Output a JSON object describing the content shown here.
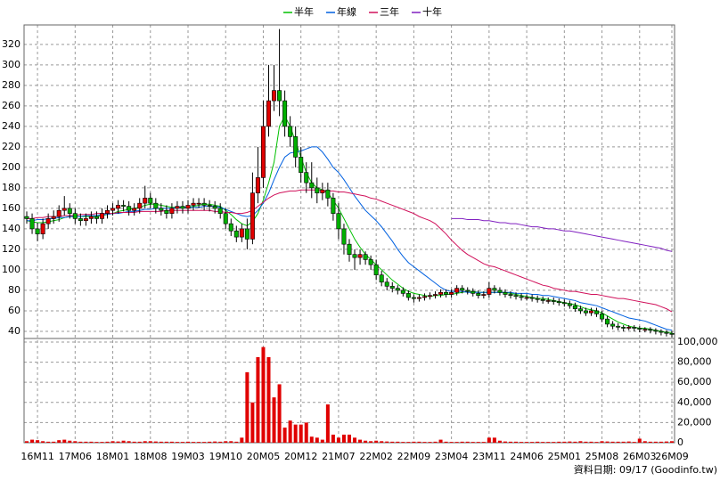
{
  "chart_data": {
    "type": "candlestick",
    "categories": [
      null,
      null,
      "16M11",
      null,
      null,
      null,
      null,
      null,
      null,
      "17M06",
      null,
      null,
      null,
      null,
      null,
      null,
      "18M01",
      null,
      null,
      null,
      null,
      null,
      null,
      "18M08",
      null,
      null,
      null,
      null,
      null,
      null,
      "19M03",
      null,
      null,
      null,
      null,
      null,
      null,
      "19M10",
      null,
      null,
      null,
      null,
      null,
      null,
      "20M05",
      null,
      null,
      null,
      null,
      null,
      null,
      "20M12",
      null,
      null,
      null,
      null,
      null,
      null,
      "21M07",
      null,
      null,
      null,
      null,
      null,
      null,
      "22M02",
      null,
      null,
      null,
      null,
      null,
      null,
      "22M09",
      null,
      null,
      null,
      null,
      null,
      null,
      "23M04",
      null,
      null,
      null,
      null,
      null,
      null,
      "23M11",
      null,
      null,
      null,
      null,
      null,
      null,
      "24M06",
      null,
      null,
      null,
      null,
      null,
      null,
      "25M01",
      null,
      null,
      null,
      null,
      null,
      null,
      "25M08",
      null,
      null,
      null,
      null,
      null,
      null,
      "26M03",
      null,
      null,
      null,
      null,
      null,
      "26M09"
    ],
    "open": [
      152,
      150,
      140,
      135,
      145,
      150,
      152,
      158,
      160,
      155,
      150,
      148,
      150,
      152,
      150,
      155,
      158,
      160,
      163,
      162,
      158,
      160,
      165,
      170,
      165,
      160,
      158,
      155,
      160,
      162,
      160,
      163,
      165,
      165,
      163,
      162,
      160,
      155,
      145,
      138,
      132,
      140,
      130,
      175,
      190,
      240,
      265,
      275,
      265,
      240,
      230,
      210,
      195,
      185,
      180,
      175,
      178,
      170,
      155,
      140,
      125,
      115,
      112,
      115,
      110,
      105,
      95,
      88,
      84,
      82,
      80,
      77,
      73,
      72,
      73,
      74,
      75,
      76,
      78,
      76,
      78,
      82,
      80,
      79,
      77,
      75,
      76,
      82,
      80,
      78,
      76,
      75,
      74,
      73,
      73,
      72,
      71,
      70,
      70,
      69,
      68,
      67,
      65,
      62,
      60,
      58,
      60,
      57,
      52,
      47,
      45,
      44,
      43,
      44,
      43,
      42,
      42,
      41,
      40,
      39,
      38
    ],
    "high": [
      157,
      155,
      146,
      150,
      155,
      158,
      163,
      172,
      165,
      160,
      155,
      155,
      157,
      157,
      160,
      163,
      165,
      168,
      168,
      167,
      165,
      170,
      182,
      175,
      170,
      165,
      163,
      165,
      167,
      167,
      168,
      170,
      170,
      170,
      168,
      167,
      165,
      160,
      150,
      143,
      145,
      150,
      195,
      220,
      265,
      300,
      300,
      335,
      275,
      250,
      240,
      220,
      205,
      205,
      190,
      185,
      185,
      175,
      165,
      145,
      130,
      120,
      120,
      118,
      114,
      110,
      99,
      92,
      88,
      85,
      83,
      80,
      76,
      76,
      77,
      78,
      79,
      81,
      81,
      81,
      85,
      85,
      83,
      82,
      80,
      79,
      88,
      85,
      83,
      81,
      79,
      78,
      77,
      76,
      76,
      75,
      74,
      73,
      73,
      72,
      71,
      70,
      68,
      65,
      63,
      63,
      63,
      60,
      55,
      50,
      48,
      46,
      46,
      46,
      45,
      44,
      44,
      43,
      42,
      41,
      40
    ],
    "low": [
      145,
      135,
      128,
      130,
      140,
      145,
      147,
      153,
      150,
      145,
      143,
      143,
      145,
      145,
      145,
      150,
      153,
      155,
      157,
      153,
      153,
      155,
      160,
      160,
      155,
      153,
      150,
      150,
      155,
      155,
      155,
      158,
      160,
      158,
      157,
      155,
      150,
      140,
      133,
      127,
      127,
      120,
      125,
      165,
      180,
      230,
      255,
      250,
      230,
      220,
      200,
      185,
      175,
      170,
      165,
      168,
      162,
      148,
      130,
      115,
      108,
      100,
      105,
      105,
      100,
      90,
      84,
      80,
      78,
      76,
      74,
      70,
      68,
      69,
      70,
      71,
      72,
      73,
      73,
      73,
      75,
      77,
      76,
      74,
      72,
      72,
      73,
      77,
      75,
      73,
      72,
      71,
      70,
      70,
      69,
      68,
      67,
      67,
      66,
      65,
      64,
      62,
      59,
      57,
      55,
      55,
      54,
      49,
      44,
      42,
      41,
      40,
      41,
      40,
      39,
      39,
      38,
      37,
      36,
      35,
      34
    ],
    "close": [
      150,
      140,
      135,
      145,
      150,
      152,
      158,
      160,
      155,
      150,
      148,
      150,
      152,
      150,
      155,
      158,
      160,
      163,
      162,
      158,
      160,
      165,
      170,
      165,
      160,
      158,
      155,
      160,
      162,
      160,
      163,
      165,
      165,
      163,
      162,
      160,
      155,
      145,
      138,
      132,
      140,
      130,
      175,
      190,
      240,
      265,
      275,
      265,
      240,
      230,
      210,
      195,
      185,
      180,
      175,
      178,
      170,
      155,
      140,
      125,
      115,
      112,
      115,
      110,
      105,
      95,
      88,
      84,
      82,
      80,
      77,
      73,
      72,
      73,
      74,
      75,
      76,
      78,
      76,
      78,
      82,
      80,
      79,
      77,
      75,
      76,
      82,
      80,
      78,
      76,
      75,
      74,
      73,
      73,
      72,
      71,
      70,
      70,
      69,
      68,
      67,
      65,
      62,
      60,
      58,
      60,
      57,
      52,
      47,
      45,
      44,
      43,
      44,
      43,
      42,
      42,
      41,
      40,
      39,
      38,
      37
    ],
    "up_color": "#e00000",
    "down_color": "#00b000",
    "ylim": [
      33,
      339
    ],
    "yticks": [
      40,
      60,
      80,
      100,
      120,
      140,
      160,
      180,
      200,
      220,
      240,
      260,
      280,
      300,
      320
    ],
    "grid": true,
    "series": [
      {
        "name": "半年",
        "color": "#00c000",
        "values": [
          148,
          147,
          146,
          146,
          147,
          148,
          149,
          151,
          152,
          152,
          152,
          152,
          152,
          152,
          153,
          154,
          155,
          157,
          158,
          159,
          160,
          161,
          163,
          164,
          164,
          163,
          162,
          161,
          161,
          161,
          161,
          162,
          163,
          164,
          164,
          163,
          162,
          158,
          154,
          149,
          145,
          143,
          147,
          155,
          168,
          185,
          205,
          240,
          250,
          240,
          225,
          210,
          195,
          185,
          180,
          178,
          175,
          168,
          160,
          150,
          140,
          130,
          122,
          115,
          110,
          105,
          100,
          95,
          90,
          86,
          82,
          79,
          77,
          76,
          75,
          74,
          75,
          75,
          76,
          76,
          77,
          78,
          79,
          79,
          78,
          78,
          78,
          78,
          78,
          78,
          77,
          76,
          75,
          74,
          73,
          72,
          72,
          71,
          70,
          69,
          68,
          67,
          66,
          64,
          62,
          61,
          60,
          58,
          55,
          52,
          49,
          47,
          45,
          44,
          43,
          43,
          42,
          41,
          40,
          39,
          39
        ]
      },
      {
        "name": "年線",
        "color": "#0060e0",
        "values": [
          148,
          148,
          149,
          149,
          150,
          150,
          151,
          151,
          152,
          152,
          152,
          153,
          153,
          153,
          154,
          154,
          155,
          155,
          156,
          157,
          157,
          158,
          159,
          159,
          160,
          160,
          160,
          160,
          161,
          161,
          161,
          161,
          161,
          162,
          162,
          162,
          161,
          159,
          157,
          155,
          153,
          152,
          153,
          158,
          165,
          175,
          188,
          200,
          210,
          214,
          215,
          216,
          218,
          220,
          220,
          215,
          208,
          200,
          195,
          188,
          180,
          172,
          165,
          158,
          153,
          148,
          142,
          135,
          128,
          120,
          113,
          107,
          103,
          99,
          95,
          91,
          87,
          83,
          80,
          79,
          79,
          79,
          78,
          78,
          78,
          78,
          78,
          78,
          78,
          78,
          78,
          77,
          77,
          77,
          76,
          76,
          75,
          75,
          74,
          73,
          72,
          71,
          70,
          68,
          67,
          66,
          65,
          63,
          61,
          59,
          57,
          55,
          53,
          52,
          51,
          50,
          48,
          46,
          44,
          42,
          41
        ]
      },
      {
        "name": "三年",
        "color": "#d0105a",
        "values": [
          150,
          150,
          151,
          151,
          152,
          152,
          152,
          153,
          153,
          153,
          154,
          154,
          154,
          155,
          155,
          155,
          155,
          156,
          156,
          156,
          156,
          157,
          157,
          157,
          157,
          157,
          158,
          158,
          158,
          158,
          158,
          158,
          158,
          158,
          158,
          157,
          157,
          156,
          156,
          155,
          155,
          156,
          158,
          162,
          166,
          170,
          173,
          175,
          176,
          177,
          177,
          178,
          178,
          178,
          178,
          177,
          177,
          177,
          176,
          176,
          175,
          174,
          173,
          172,
          170,
          169,
          167,
          165,
          163,
          161,
          159,
          157,
          155,
          152,
          150,
          148,
          145,
          140,
          135,
          129,
          124,
          119,
          115,
          112,
          109,
          106,
          104,
          103,
          101,
          99,
          97,
          95,
          93,
          91,
          89,
          87,
          85,
          84,
          82,
          81,
          80,
          79,
          79,
          78,
          77,
          76,
          76,
          75,
          74,
          73,
          72,
          72,
          71,
          70,
          69,
          68,
          67,
          66,
          64,
          62,
          59
        ]
      },
      {
        "name": "十年",
        "color": "#8020c0",
        "values": [
          null,
          null,
          null,
          null,
          null,
          null,
          null,
          null,
          null,
          null,
          null,
          null,
          null,
          null,
          null,
          null,
          null,
          null,
          null,
          null,
          null,
          null,
          null,
          null,
          null,
          null,
          null,
          null,
          null,
          null,
          null,
          null,
          null,
          null,
          null,
          null,
          null,
          null,
          null,
          null,
          null,
          null,
          null,
          null,
          null,
          null,
          null,
          null,
          null,
          null,
          null,
          null,
          null,
          null,
          null,
          null,
          null,
          null,
          null,
          null,
          null,
          null,
          null,
          null,
          null,
          null,
          null,
          null,
          null,
          null,
          null,
          null,
          null,
          null,
          null,
          null,
          null,
          null,
          null,
          150,
          150,
          150,
          149,
          149,
          149,
          148,
          148,
          147,
          146,
          146,
          145,
          145,
          144,
          143,
          142,
          142,
          141,
          140,
          140,
          139,
          138,
          138,
          137,
          136,
          135,
          134,
          133,
          132,
          131,
          130,
          129,
          128,
          127,
          126,
          125,
          124,
          123,
          122,
          121,
          119,
          118
        ]
      }
    ],
    "volume": {
      "type": "bar",
      "color": "#e00000",
      "values": [
        1500,
        3000,
        2500,
        1500,
        1000,
        1000,
        2500,
        3000,
        2000,
        1500,
        1000,
        1000,
        1000,
        800,
        800,
        1000,
        1500,
        1200,
        2000,
        1500,
        1000,
        1000,
        1500,
        1500,
        1200,
        1000,
        1000,
        1000,
        800,
        800,
        1000,
        800,
        800,
        800,
        1000,
        1200,
        1000,
        1500,
        1500,
        1000,
        5000,
        70000,
        40000,
        85000,
        95000,
        85000,
        45000,
        58000,
        15000,
        22000,
        18000,
        18000,
        20000,
        6000,
        5000,
        3000,
        38000,
        8000,
        5000,
        8000,
        8000,
        5000,
        3000,
        2000,
        1500,
        2000,
        1500,
        1200,
        1000,
        1000,
        800,
        800,
        1000,
        1000,
        800,
        800,
        1000,
        3000,
        1000,
        800,
        800,
        1000,
        1000,
        800,
        800,
        800,
        5000,
        5000,
        2000,
        1200,
        1000,
        1000,
        800,
        800,
        800,
        1000,
        800,
        800,
        800,
        1000,
        1000,
        1200,
        1000,
        1500,
        1000,
        1000,
        800,
        1500,
        1200,
        1000,
        1000,
        1000,
        1200,
        800,
        4000,
        1500,
        1000,
        1000,
        1000,
        1200,
        1500
      ],
      "ylim": [
        0,
        103500
      ],
      "yticks": [
        0,
        {
          "value": 20000,
          "label": "20,000"
        },
        {
          "value": 40000,
          "label": "40,000"
        },
        {
          "value": 60000,
          "label": "60,000"
        },
        {
          "value": 80000,
          "label": "80,000"
        },
        {
          "value": 100000,
          "label": "100,000"
        }
      ]
    },
    "footer": "資料日期: 09/17  (Goodinfo.tw)"
  }
}
